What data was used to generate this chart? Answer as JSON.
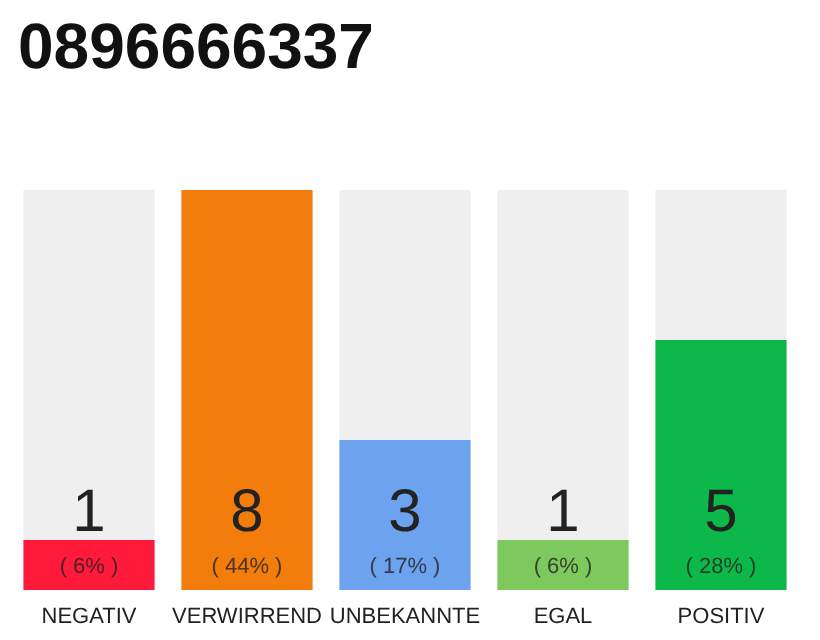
{
  "chart_data": {
    "type": "bar",
    "title": "0896666337",
    "categories": [
      "NEGATIV",
      "VERWIRREND",
      "UNBEKANNTE",
      "EGAL",
      "POSITIV"
    ],
    "values": [
      1,
      8,
      3,
      1,
      5
    ],
    "colors": [
      "#ff1a3c",
      "#f27d0c",
      "#6ca2ee",
      "#7dc95e",
      "#0db84a"
    ],
    "data_labels": true,
    "annotations": [
      "( 6% )",
      "( 44% )",
      "( 17% )",
      "( 6% )",
      "( 28% )"
    ]
  }
}
